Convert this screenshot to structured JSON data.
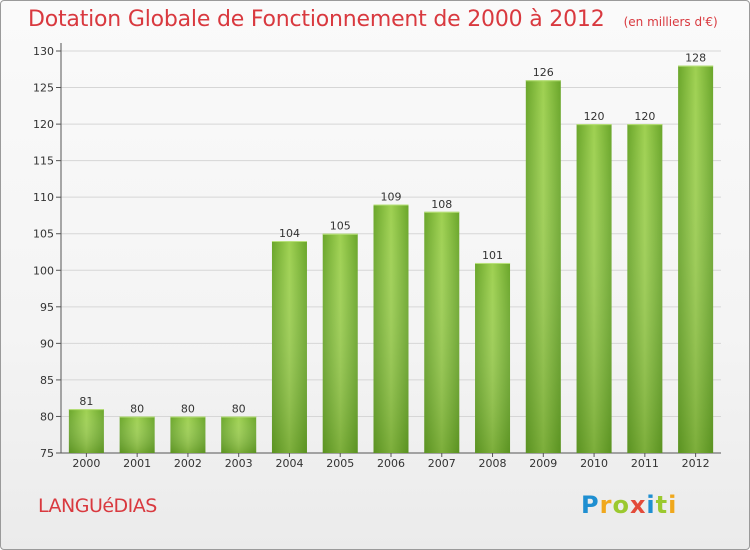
{
  "header": {
    "title": "Dotation Globale de Fonctionnement de 2000 à 2012",
    "subtitle": "(en milliers d'€)"
  },
  "footer": {
    "commune": "LANGUéDIAS",
    "brand": "Proxiti",
    "brand_letters": [
      "P",
      "r",
      "o",
      "x",
      "i",
      "t",
      "i"
    ],
    "brand_colors": [
      "#1f8fd1",
      "#f0a81c",
      "#9bc92f",
      "#e34b3a",
      "#1f8fd1",
      "#9bc92f",
      "#f0a81c"
    ]
  },
  "chart_data": {
    "type": "bar",
    "categories": [
      "2000",
      "2001",
      "2002",
      "2003",
      "2004",
      "2005",
      "2006",
      "2007",
      "2008",
      "2009",
      "2010",
      "2011",
      "2012"
    ],
    "values": [
      81,
      80,
      80,
      80,
      104,
      105,
      109,
      108,
      101,
      126,
      120,
      120,
      128
    ],
    "ylim": [
      75,
      130
    ],
    "yticks": [
      75,
      80,
      85,
      90,
      95,
      100,
      105,
      110,
      115,
      120,
      125,
      130
    ],
    "grid": true,
    "bar_color": "#7ab83a",
    "title": "Dotation Globale de Fonctionnement de 2000 à 2012",
    "subtitle": "(en milliers d'€)"
  }
}
